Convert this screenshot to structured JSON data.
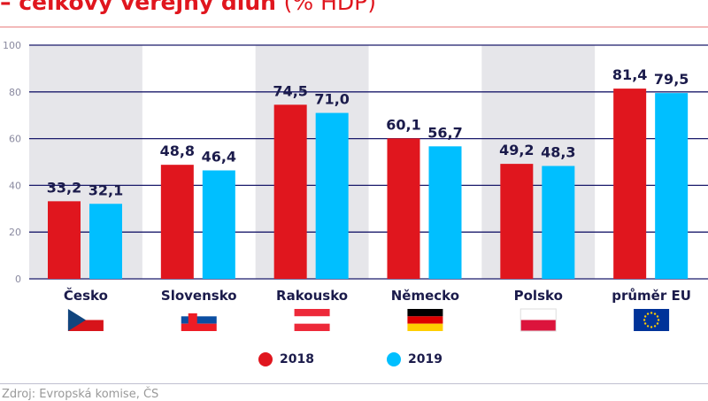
{
  "title": {
    "main": "– celkový veřejný dluh",
    "unit": "(% HDP)"
  },
  "chart_data": {
    "type": "bar",
    "categories": [
      "Česko",
      "Slovensko",
      "Rakousko",
      "Německo",
      "Polsko",
      "průměr EU"
    ],
    "series": [
      {
        "name": "2018",
        "color": "#e0161e",
        "values": [
          33.2,
          48.8,
          74.5,
          60.1,
          49.2,
          81.4
        ]
      },
      {
        "name": "2019",
        "color": "#00bfff",
        "values": [
          32.1,
          46.4,
          71.0,
          56.7,
          48.3,
          79.5
        ]
      }
    ],
    "data_labels": [
      [
        "33,2",
        "32,1"
      ],
      [
        "48,8",
        "46,4"
      ],
      [
        "74,5",
        "71,0"
      ],
      [
        "60,1",
        "56,7"
      ],
      [
        "49,2",
        "48,3"
      ],
      [
        "81,4",
        "79,5"
      ]
    ],
    "yticks": [
      "0",
      "20",
      "40",
      "60",
      "80",
      "100"
    ],
    "ylim": [
      0,
      100
    ],
    "grid": true,
    "legend": "bottom",
    "flags": [
      "flag-czech",
      "flag-slovakia",
      "flag-austria",
      "flag-germany",
      "flag-poland",
      "flag-eu"
    ]
  },
  "source": "Zdroj: Evropská komise, ČS"
}
